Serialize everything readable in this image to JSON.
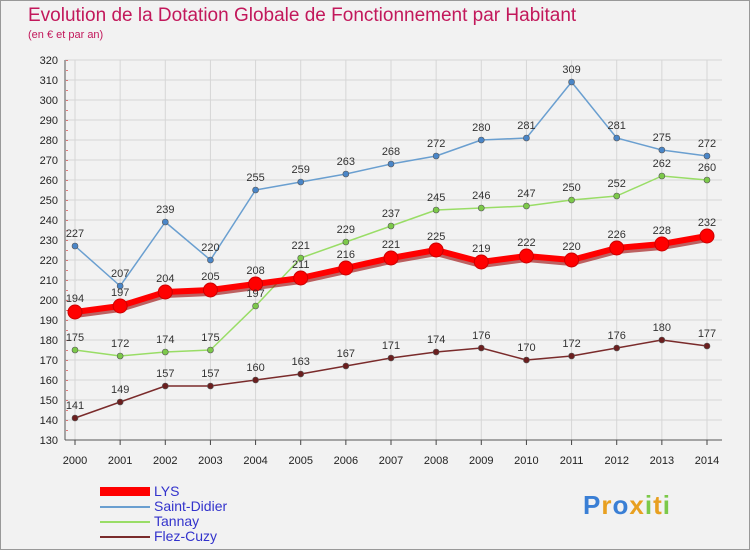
{
  "chart_data": {
    "type": "line",
    "title": "Evolution de la Dotation Globale de Fonctionnement par Habitant",
    "subtitle": "(en € et par an)",
    "categories": [
      "2000",
      "2001",
      "2002",
      "2003",
      "2004",
      "2005",
      "2006",
      "2007",
      "2008",
      "2009",
      "2010",
      "2011",
      "2012",
      "2013",
      "2014"
    ],
    "yticks": [
      "130",
      "140",
      "150",
      "160",
      "170",
      "180",
      "190",
      "200",
      "210",
      "220",
      "230",
      "240",
      "250",
      "260",
      "270",
      "280",
      "290",
      "300",
      "310",
      "320"
    ],
    "ylim": [
      130,
      320
    ],
    "grid": true,
    "series": [
      {
        "name": "Saint-Didier",
        "color": "#6a9fd0",
        "marker": "#4a86c8",
        "values": [
          227,
          207,
          239,
          220,
          255,
          259,
          263,
          268,
          272,
          280,
          281,
          309,
          281,
          275,
          272
        ]
      },
      {
        "name": "Tannay",
        "color": "#99dd66",
        "marker": "#7cc94a",
        "values": [
          175,
          172,
          174,
          175,
          197,
          221,
          229,
          237,
          245,
          246,
          247,
          250,
          252,
          262,
          260
        ]
      },
      {
        "name": "Flez-Cuzy",
        "color": "#7a2b2b",
        "marker": "#6b1f1f",
        "values": [
          141,
          149,
          157,
          157,
          160,
          163,
          167,
          171,
          174,
          176,
          170,
          172,
          176,
          180,
          177
        ]
      },
      {
        "name": "LYS",
        "color": "#ff0000",
        "marker": "#ff0000",
        "values": [
          194,
          197,
          204,
          205,
          208,
          211,
          216,
          221,
          225,
          219,
          222,
          220,
          226,
          228,
          232
        ]
      }
    ],
    "legend": [
      "LYS",
      "Saint-Didier",
      "Tannay",
      "Flez-Cuzy"
    ]
  },
  "logo": {
    "letters": [
      "P",
      "r",
      "o",
      "x",
      "i",
      "t",
      "i"
    ],
    "colors": [
      "#3a7fd5",
      "#e8a020",
      "#3a7fd5",
      "#e8a020",
      "#7cc94a",
      "#e8a020",
      "#7cc94a"
    ]
  }
}
